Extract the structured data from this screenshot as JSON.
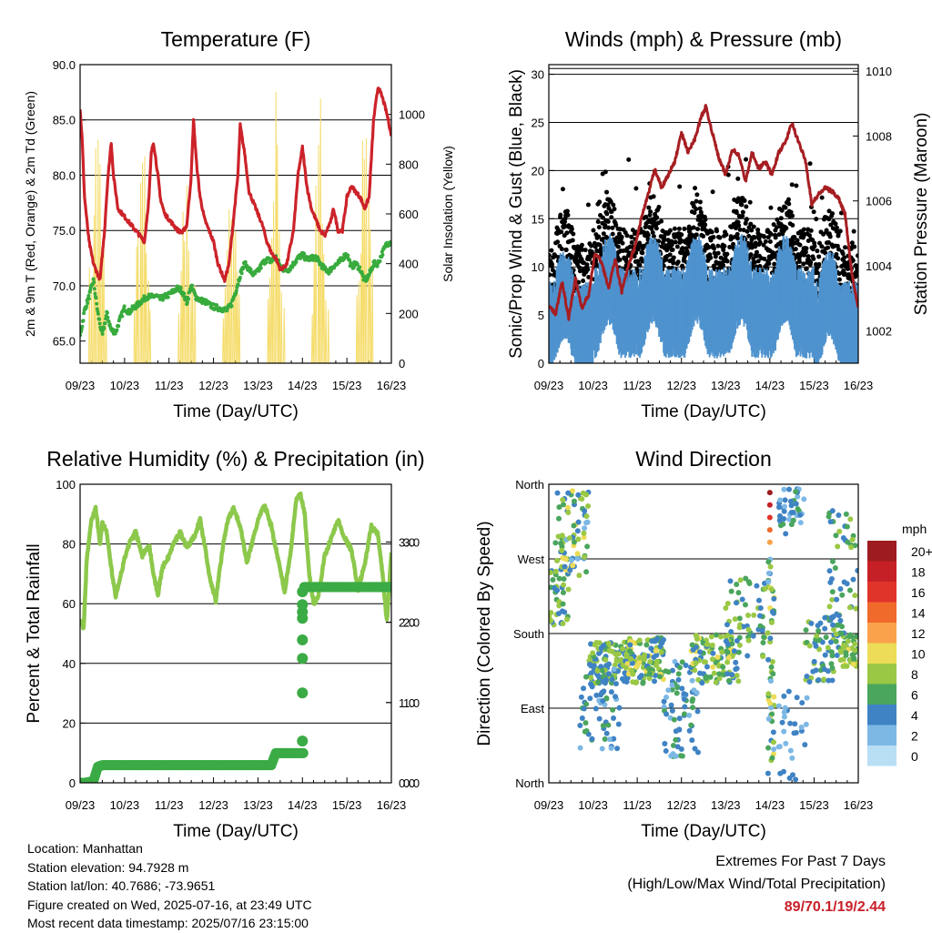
{
  "footer": {
    "location": "Location: Manhattan",
    "elevation": "Station elevation: 94.7928 m",
    "latlon": "Station lat/lon: 40.7686; -73.9651",
    "created": "Figure created on Wed, 2025-07-16, at 23:49 UTC",
    "recent": "Most recent data timestamp: 2025/07/16 23:15:00"
  },
  "extremes": {
    "title": "Extremes For Past 7 Days",
    "subtitle": "(High/Low/Max Wind/Total Precipitation)",
    "value": "89/70.1/19/2.44"
  },
  "chart_data": [
    {
      "id": "temp",
      "type": "line",
      "title": "Temperature (F)",
      "xlabel": "Time (Day/UTC)",
      "ylabel": "2m & 9m T (Red, Orange) & 2m Td (Green)",
      "y2label": "Solar Insolation (Yellow)",
      "x_ticks": [
        "09/23",
        "10/23",
        "11/23",
        "12/23",
        "13/23",
        "14/23",
        "15/23",
        "16/23"
      ],
      "xlim": [
        0,
        7
      ],
      "ylim": [
        63.0,
        90.0
      ],
      "y_ticks": [
        "65.0",
        "70.0",
        "75.0",
        "80.0",
        "85.0",
        "90.0"
      ],
      "y2lim": [
        0,
        1200
      ],
      "y2_ticks": [
        "0",
        "200",
        "400",
        "600",
        "800",
        "1000"
      ],
      "series": [
        {
          "color": "#cc2229",
          "kind": "line",
          "width": 3.2,
          "x": [
            0,
            0.05,
            0.1,
            0.2,
            0.3,
            0.4,
            0.45,
            0.55,
            0.62,
            0.7,
            0.75,
            0.85,
            0.95,
            1.05,
            1.15,
            1.25,
            1.35,
            1.45,
            1.55,
            1.6,
            1.65,
            1.75,
            1.8,
            1.9,
            2.0,
            2.1,
            2.2,
            2.3,
            2.4,
            2.5,
            2.55,
            2.62,
            2.7,
            2.8,
            2.9,
            3.0,
            3.1,
            3.2,
            3.25,
            3.35,
            3.45,
            3.55,
            3.6,
            3.7,
            3.8,
            3.9,
            4.0,
            4.1,
            4.2,
            4.3,
            4.4,
            4.5,
            4.6,
            4.65,
            4.7,
            4.8,
            4.9,
            5.0,
            5.1,
            5.2,
            5.3,
            5.4,
            5.5,
            5.6,
            5.65,
            5.7,
            5.8,
            5.9,
            6.0,
            6.1,
            6.2,
            6.3,
            6.4,
            6.5,
            6.6,
            6.7,
            6.8,
            6.87,
            6.93,
            7.0
          ],
          "y": [
            86,
            83,
            78,
            74,
            72,
            71,
            70.6,
            75,
            79.5,
            83,
            80,
            77,
            76.5,
            76,
            75.5,
            75,
            74.5,
            74,
            78,
            82,
            83,
            80,
            78,
            76.5,
            76,
            75.5,
            75,
            74.8,
            75.5,
            80,
            85,
            81,
            78,
            76,
            75,
            74,
            72,
            71,
            70.5,
            72,
            76,
            80,
            84.5,
            82,
            78.5,
            77.5,
            76.5,
            75.5,
            74,
            73,
            72.5,
            71.5,
            71.7,
            72,
            73,
            75,
            80,
            82.5,
            79,
            77,
            76,
            75,
            74.5,
            75.5,
            76,
            77,
            75,
            75,
            78,
            79,
            78.5,
            78,
            77,
            78,
            85,
            88,
            87,
            86,
            85,
            83.5
          ]
        },
        {
          "color": "#38ab3d",
          "kind": "dots",
          "width": 3,
          "x": [
            0,
            0.05,
            0.1,
            0.2,
            0.3,
            0.4,
            0.5,
            0.55,
            0.6,
            0.7,
            0.8,
            0.9,
            1.0,
            1.1,
            1.2,
            1.3,
            1.4,
            1.5,
            1.6,
            1.7,
            1.8,
            1.9,
            2.0,
            2.1,
            2.2,
            2.3,
            2.4,
            2.5,
            2.6,
            2.7,
            2.8,
            2.9,
            3.0,
            3.1,
            3.2,
            3.3,
            3.4,
            3.5,
            3.6,
            3.7,
            3.8,
            3.9,
            4.0,
            4.1,
            4.2,
            4.3,
            4.4,
            4.5,
            4.6,
            4.7,
            4.8,
            4.9,
            5.0,
            5.1,
            5.2,
            5.3,
            5.4,
            5.5,
            5.6,
            5.7,
            5.8,
            5.9,
            6.0,
            6.1,
            6.2,
            6.3,
            6.4,
            6.5,
            6.6,
            6.7,
            6.8,
            6.9,
            7.0
          ],
          "y": [
            65.5,
            66.5,
            67.8,
            69,
            70.5,
            67.5,
            65.5,
            66.5,
            67.5,
            66,
            65.8,
            67,
            68,
            67.6,
            68,
            68.3,
            68.7,
            69,
            69,
            69.1,
            68.8,
            69,
            69.2,
            69.5,
            69.8,
            69.5,
            68.5,
            70,
            69,
            68.7,
            68.6,
            68.3,
            68.1,
            68,
            67.9,
            67.8,
            68.3,
            69.5,
            71,
            72,
            71.5,
            71,
            71.3,
            72,
            72.4,
            72.2,
            72.6,
            71.8,
            71.4,
            71.5,
            72,
            72.5,
            72.8,
            72.4,
            72.5,
            72.6,
            72,
            71.5,
            71.3,
            71.8,
            72,
            72.5,
            72.9,
            71.7,
            72,
            71.5,
            70.4,
            71,
            72,
            72,
            73,
            73.8,
            74
          ]
        }
      ],
      "solar": {
        "color": "#f5dc6a",
        "days": [
          0,
          1,
          2,
          3,
          4,
          5,
          6
        ],
        "peaks": [
          1200,
          1050,
          980,
          1000,
          1170,
          1120,
          1140
        ]
      }
    },
    {
      "id": "wind",
      "type": "line",
      "title": "Winds (mph) & Pressure (mb)",
      "xlabel": "Time (Day/UTC)",
      "ylabel": "Sonic/Prop Wind & Gust (Blue, Black)",
      "y2label": "Station Pressure (Maroon)",
      "x_ticks": [
        "09/23",
        "10/23",
        "11/23",
        "12/23",
        "13/23",
        "14/23",
        "15/23",
        "16/23"
      ],
      "xlim": [
        0,
        7
      ],
      "ylim": [
        0,
        31
      ],
      "y_ticks": [
        "0",
        "5",
        "10",
        "15",
        "20",
        "25",
        "30"
      ],
      "y2lim": [
        1001.0,
        1010.2
      ],
      "y2_ticks": [
        "1002",
        "1004",
        "1006",
        "1008",
        "1010"
      ],
      "series": [
        {
          "name": "pressure",
          "color": "#a61e22",
          "kind": "line",
          "width": 3,
          "x": [
            0,
            0.15,
            0.3,
            0.45,
            0.6,
            0.75,
            0.9,
            1.05,
            1.2,
            1.35,
            1.5,
            1.65,
            1.8,
            1.95,
            2.1,
            2.25,
            2.4,
            2.55,
            2.7,
            2.85,
            3.0,
            3.15,
            3.3,
            3.45,
            3.55,
            3.7,
            3.85,
            4.0,
            4.15,
            4.3,
            4.45,
            4.6,
            4.75,
            4.9,
            5.05,
            5.2,
            5.35,
            5.5,
            5.65,
            5.8,
            5.95,
            6.1,
            6.25,
            6.4,
            6.55,
            6.7,
            6.85,
            7.0
          ],
          "y": [
            1002.8,
            1002.5,
            1003.5,
            1002.4,
            1003.6,
            1002.7,
            1003.1,
            1004.4,
            1004.1,
            1003.3,
            1004.2,
            1003.2,
            1004.0,
            1004.6,
            1005.5,
            1006.2,
            1007.0,
            1006.4,
            1006.8,
            1007.2,
            1008.1,
            1007.5,
            1007.9,
            1008.6,
            1008.9,
            1008.1,
            1007.3,
            1006.8,
            1007.6,
            1007.4,
            1006.6,
            1007.5,
            1007.0,
            1007.2,
            1006.8,
            1007.5,
            1007.8,
            1008.4,
            1007.8,
            1007.3,
            1005.9,
            1006.2,
            1006.4,
            1006.3,
            1006.1,
            1005.6,
            1003.8,
            1002.7
          ]
        },
        {
          "name": "wind",
          "color": "#4f93ce",
          "kind": "band"
        },
        {
          "name": "gust",
          "color": "#000000",
          "kind": "scatter"
        }
      ]
    },
    {
      "id": "rh",
      "type": "line",
      "title": "Relative Humidity (%) & Precipitation (in)",
      "xlabel": "Time (Day/UTC)",
      "ylabel": "Percent & Total Rainfall",
      "x_ticks": [
        "09/23",
        "10/23",
        "11/23",
        "12/23",
        "13/23",
        "14/23",
        "15/23",
        "16/23"
      ],
      "xlim": [
        0,
        7
      ],
      "ylim": [
        0,
        100
      ],
      "y_ticks": [
        "0",
        "20",
        "40",
        "60",
        "80",
        "100"
      ],
      "y2lim": [
        0,
        3.72
      ],
      "y2_ticks": [
        "0.0",
        "1.0",
        "2.0",
        "3.0"
      ],
      "series": [
        {
          "name": "rh",
          "color": "#8cc84b",
          "kind": "line",
          "width": 4.5,
          "x": [
            0,
            0.08,
            0.15,
            0.25,
            0.35,
            0.45,
            0.5,
            0.6,
            0.7,
            0.8,
            0.9,
            1.0,
            1.1,
            1.25,
            1.4,
            1.55,
            1.65,
            1.75,
            1.85,
            2.0,
            2.1,
            2.25,
            2.4,
            2.55,
            2.7,
            2.8,
            2.9,
            3.05,
            3.2,
            3.3,
            3.45,
            3.6,
            3.75,
            3.9,
            4.0,
            4.15,
            4.3,
            4.45,
            4.6,
            4.75,
            4.85,
            4.95,
            5.05,
            5.15,
            5.25,
            5.35,
            5.5,
            5.65,
            5.8,
            5.95,
            6.1,
            6.25,
            6.4,
            6.55,
            6.7,
            6.8,
            6.9,
            7.0
          ],
          "y": [
            55,
            52,
            75,
            88,
            92,
            80,
            87,
            84,
            72,
            62,
            69,
            75,
            80,
            84,
            76,
            80,
            70,
            63,
            72,
            76,
            80,
            84,
            79,
            82,
            88,
            80,
            70,
            61,
            78,
            87,
            92,
            86,
            74,
            82,
            88,
            93,
            86,
            75,
            64,
            79,
            94,
            97,
            90,
            70,
            60,
            62,
            76,
            82,
            88,
            82,
            78,
            65,
            73,
            86,
            83,
            70,
            54,
            77
          ]
        },
        {
          "name": "precip",
          "color": "#3bab45",
          "kind": "dots",
          "x": [
            0,
            0.1,
            0.2,
            0.3,
            0.4,
            0.5,
            0.7,
            0.9,
            1.1,
            1.3,
            1.5,
            1.7,
            1.9,
            2.1,
            2.3,
            2.5,
            2.7,
            2.9,
            3.1,
            3.3,
            3.5,
            3.7,
            3.9,
            4.0,
            4.1,
            4.2,
            4.3,
            4.4,
            4.5,
            4.6,
            4.7,
            4.8,
            4.9,
            4.95,
            5.0,
            5.0,
            5.0,
            5.0,
            5.0,
            5.0,
            5.0,
            5.02,
            5.05,
            5.1,
            5.2,
            5.4,
            5.6,
            5.8,
            6.0,
            6.2,
            6.4,
            6.6,
            6.8,
            7.0
          ],
          "y": [
            0,
            0,
            0.01,
            0.02,
            0.2,
            0.22,
            0.22,
            0.22,
            0.22,
            0.22,
            0.22,
            0.22,
            0.22,
            0.22,
            0.22,
            0.22,
            0.22,
            0.22,
            0.22,
            0.22,
            0.22,
            0.22,
            0.22,
            0.22,
            0.22,
            0.22,
            0.22,
            0.37,
            0.37,
            0.37,
            0.37,
            0.37,
            0.37,
            0.37,
            0.37,
            0.52,
            1.12,
            1.55,
            1.78,
            2.05,
            2.13,
            2.22,
            2.38,
            2.42,
            2.44,
            2.44,
            2.44,
            2.44,
            2.44,
            2.44,
            2.44,
            2.44,
            2.44,
            2.44
          ]
        }
      ]
    },
    {
      "id": "dir",
      "type": "scatter",
      "title": "Wind Direction",
      "xlabel": "Time (Day/UTC)",
      "ylabel": "Direction (Colored By Speed)",
      "x_ticks": [
        "09/23",
        "10/23",
        "11/23",
        "12/23",
        "13/23",
        "14/23",
        "15/23",
        "16/23"
      ],
      "xlim": [
        0,
        7
      ],
      "ylim": [
        0,
        360
      ],
      "y_ticks": [
        "North",
        "East",
        "South",
        "West",
        "North"
      ],
      "legend": {
        "title": "mph",
        "labels": [
          "20+",
          "18",
          "16",
          "14",
          "12",
          "10",
          "8",
          "6",
          "4",
          "2",
          "0"
        ],
        "colors": [
          "#9e1b1f",
          "#c62027",
          "#e0342b",
          "#f06a2c",
          "#f9a24b",
          "#eddc57",
          "#9ac845",
          "#4aa55d",
          "#3f83c4",
          "#7db8e5",
          "#b9dff5"
        ]
      },
      "clusters": [
        {
          "x0": 0.0,
          "x1": 0.45,
          "d0": 190,
          "d1": 260,
          "n": 40,
          "s": [
            3,
            8
          ]
        },
        {
          "x0": 0.15,
          "x1": 0.9,
          "d0": 250,
          "d1": 355,
          "n": 80,
          "s": [
            2,
            10
          ]
        },
        {
          "x0": 0.9,
          "x1": 1.8,
          "d0": 120,
          "d1": 170,
          "n": 110,
          "s": [
            3,
            9
          ]
        },
        {
          "x0": 0.7,
          "x1": 1.6,
          "d0": 40,
          "d1": 140,
          "n": 60,
          "s": [
            2,
            6
          ]
        },
        {
          "x0": 1.7,
          "x1": 2.6,
          "d0": 120,
          "d1": 175,
          "n": 110,
          "s": [
            3,
            10
          ]
        },
        {
          "x0": 2.6,
          "x1": 3.4,
          "d0": 30,
          "d1": 150,
          "n": 70,
          "s": [
            2,
            6
          ]
        },
        {
          "x0": 3.2,
          "x1": 4.3,
          "d0": 120,
          "d1": 180,
          "n": 110,
          "s": [
            3,
            10
          ]
        },
        {
          "x0": 4.0,
          "x1": 4.9,
          "d0": 150,
          "d1": 250,
          "n": 60,
          "s": [
            3,
            9
          ]
        },
        {
          "x0": 4.95,
          "x1": 5.1,
          "d0": 10,
          "d1": 270,
          "n": 50,
          "s": [
            2,
            10
          ]
        },
        {
          "x0": 5.2,
          "x1": 5.8,
          "d0": 300,
          "d1": 355,
          "n": 40,
          "s": [
            2,
            7
          ]
        },
        {
          "x0": 5.2,
          "x1": 5.9,
          "d0": 0,
          "d1": 120,
          "n": 30,
          "s": [
            2,
            5
          ]
        },
        {
          "x0": 5.8,
          "x1": 6.6,
          "d0": 120,
          "d1": 200,
          "n": 60,
          "s": [
            3,
            8
          ]
        },
        {
          "x0": 6.3,
          "x1": 7.0,
          "d0": 160,
          "d1": 330,
          "n": 60,
          "s": [
            3,
            9
          ]
        },
        {
          "x0": 6.6,
          "x1": 7.0,
          "d0": 140,
          "d1": 180,
          "n": 40,
          "s": [
            5,
            10
          ]
        }
      ]
    }
  ]
}
